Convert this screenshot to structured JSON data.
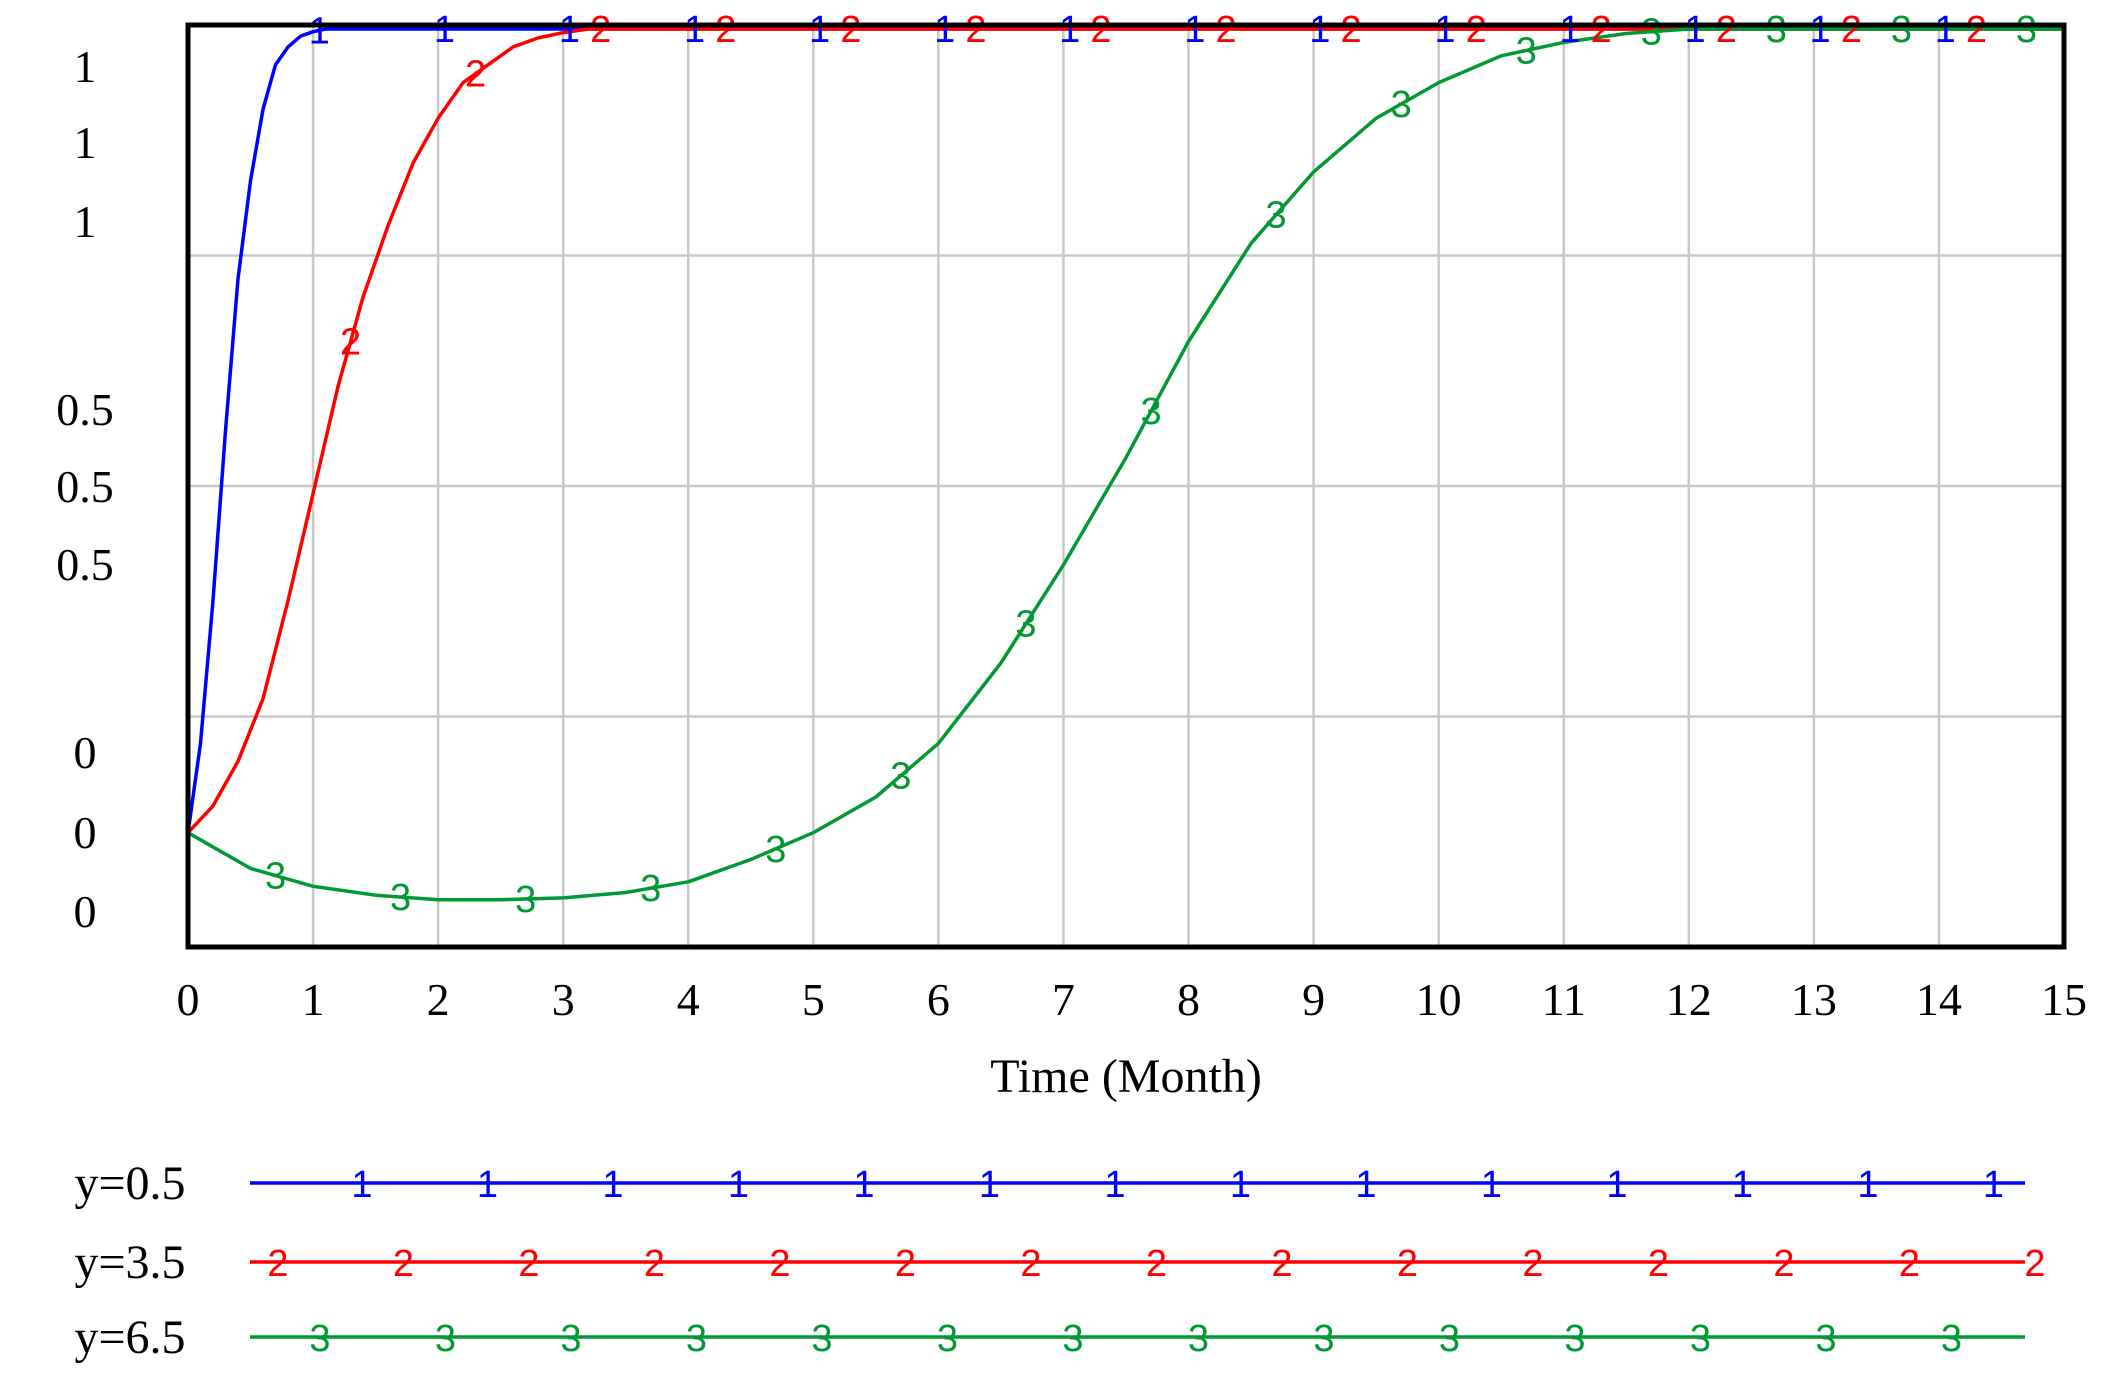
{
  "chart_data": {
    "type": "line",
    "title": "",
    "xlabel": "Time (Month)",
    "ylabel": "",
    "xlim": [
      0,
      15
    ],
    "ylim": [
      0,
      1
    ],
    "grid": true,
    "legend_position": "bottom",
    "x_ticks": [
      "0",
      "1",
      "2",
      "3",
      "4",
      "5",
      "6",
      "7",
      "8",
      "9",
      "10",
      "11",
      "12",
      "13",
      "14",
      "15"
    ],
    "y_tick_labels": [
      "1",
      "1",
      "1",
      "0.5",
      "0.5",
      "0.5",
      "0",
      "0",
      "0"
    ],
    "series": [
      {
        "name": "y=0.5",
        "marker": "1",
        "color": "#0000ff",
        "x": [
          0,
          0.1,
          0.2,
          0.3,
          0.4,
          0.5,
          0.6,
          0.7,
          0.8,
          0.9,
          1.0,
          1.1,
          1.2,
          1.5,
          2,
          3,
          4,
          5,
          6,
          7,
          8,
          9,
          10,
          11,
          12,
          13,
          14,
          15
        ],
        "y": [
          0.1,
          0.2,
          0.36,
          0.55,
          0.72,
          0.83,
          0.91,
          0.96,
          0.98,
          0.992,
          0.997,
          1.0,
          1.0,
          1.0,
          1.0,
          1.0,
          1.0,
          1.0,
          1.0,
          1.0,
          1.0,
          1.0,
          1.0,
          1.0,
          1.0,
          1.0,
          1.0,
          1.0
        ]
      },
      {
        "name": "y=3.5",
        "marker": "2",
        "color": "#ff0000",
        "x": [
          0,
          0.2,
          0.4,
          0.6,
          0.8,
          1.0,
          1.2,
          1.4,
          1.6,
          1.8,
          2.0,
          2.2,
          2.4,
          2.6,
          2.8,
          3.0,
          3.2,
          4,
          5,
          6,
          7,
          8,
          9,
          10,
          11,
          12,
          13,
          14,
          15
        ],
        "y": [
          0.1,
          0.13,
          0.18,
          0.25,
          0.36,
          0.48,
          0.6,
          0.7,
          0.78,
          0.85,
          0.9,
          0.94,
          0.96,
          0.98,
          0.99,
          0.996,
          1.0,
          1.0,
          1.0,
          1.0,
          1.0,
          1.0,
          1.0,
          1.0,
          1.0,
          1.0,
          1.0,
          1.0,
          1.0
        ]
      },
      {
        "name": "y=6.5",
        "marker": "3",
        "color": "#009933",
        "x": [
          0,
          0.5,
          1,
          1.5,
          2,
          2.5,
          3,
          3.5,
          4,
          4.5,
          5,
          5.5,
          6,
          6.5,
          7,
          7.5,
          8,
          8.5,
          9,
          9.5,
          10,
          10.5,
          11,
          11.5,
          12,
          13,
          14,
          15
        ],
        "y": [
          0.1,
          0.06,
          0.04,
          0.03,
          0.025,
          0.025,
          0.027,
          0.033,
          0.045,
          0.07,
          0.1,
          0.14,
          0.2,
          0.29,
          0.4,
          0.52,
          0.65,
          0.76,
          0.84,
          0.9,
          0.94,
          0.97,
          0.985,
          0.995,
          1.0,
          1.0,
          1.0,
          1.0
        ]
      }
    ]
  }
}
